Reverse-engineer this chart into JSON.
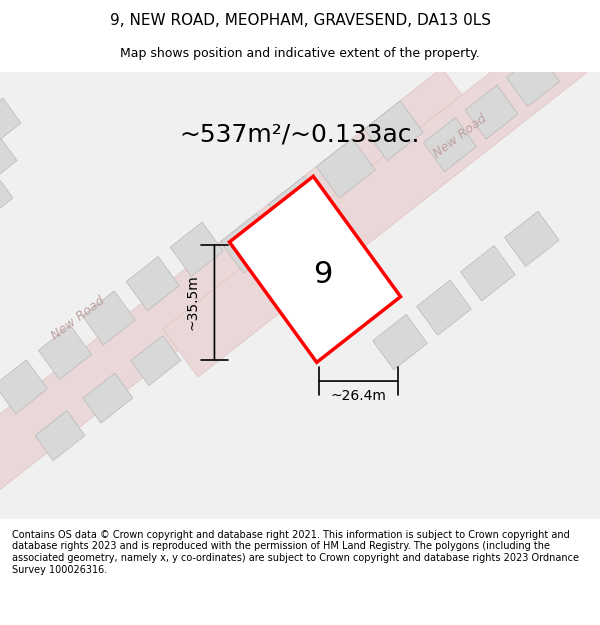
{
  "title": "9, NEW ROAD, MEOPHAM, GRAVESEND, DA13 0LS",
  "subtitle": "Map shows position and indicative extent of the property.",
  "footer": "Contains OS data © Crown copyright and database right 2021. This information is subject to Crown copyright and database rights 2023 and is reproduced with the permission of HM Land Registry. The polygons (including the associated geometry, namely x, y co-ordinates) are subject to Crown copyright and database rights 2023 Ordnance Survey 100026316.",
  "area_label": "~537m²/~0.133ac.",
  "plot_number": "9",
  "dim_width": "~26.4m",
  "dim_height": "~35.5m",
  "bg_color": "#ffffff",
  "map_bg": "#f5f5f5",
  "road_color_main": "#e8c8c8",
  "road_color_light": "#f0d8d8",
  "building_color": "#d8d8d8",
  "plot_fill": "#ffffff",
  "plot_edge": "#ff0000",
  "road_label_color": "#c0a0a0",
  "title_fontsize": 11,
  "subtitle_fontsize": 9,
  "area_fontsize": 18,
  "plot_num_fontsize": 22,
  "dim_fontsize": 10,
  "footer_fontsize": 7
}
